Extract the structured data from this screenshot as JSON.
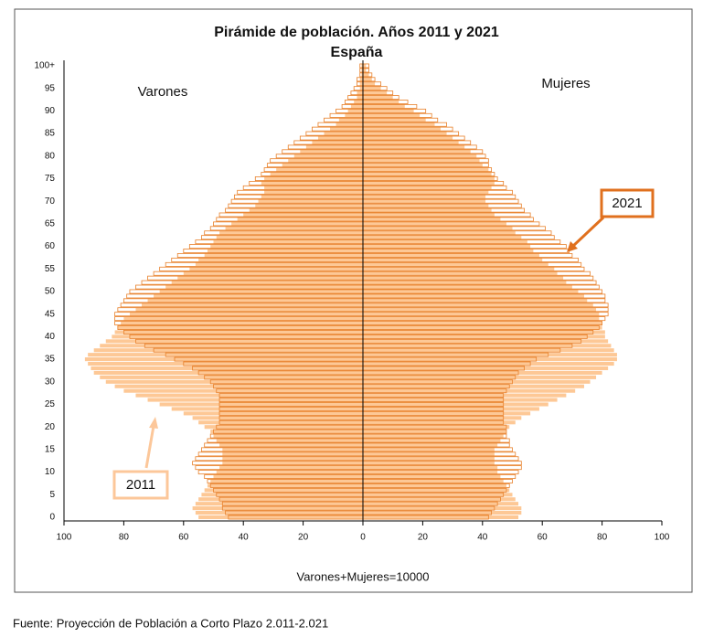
{
  "chart_data": {
    "type": "pyramid",
    "title": "Pirámide de población. Años 2011 y 2021",
    "subtitle": "España",
    "xlabel": "Varones+Mujeres=10000",
    "source": "Fuente: Proyección de Población a Corto Plazo 2.011-2.021",
    "xlim": [
      0,
      100
    ],
    "xticks": [
      0,
      20,
      40,
      60,
      80,
      100
    ],
    "categories": [
      "0",
      null,
      null,
      null,
      null,
      "5",
      null,
      null,
      null,
      null,
      "10",
      null,
      null,
      null,
      null,
      "15",
      null,
      null,
      null,
      null,
      "20",
      null,
      null,
      null,
      null,
      "25",
      null,
      null,
      null,
      null,
      "30",
      null,
      null,
      null,
      null,
      "35",
      null,
      null,
      null,
      null,
      "40",
      null,
      null,
      null,
      null,
      "45",
      null,
      null,
      null,
      null,
      "50",
      null,
      null,
      null,
      null,
      "55",
      null,
      null,
      null,
      null,
      "60",
      null,
      null,
      null,
      null,
      "65",
      null,
      null,
      null,
      null,
      "70",
      null,
      null,
      null,
      null,
      "75",
      null,
      null,
      null,
      null,
      "80",
      null,
      null,
      null,
      null,
      "85",
      null,
      null,
      null,
      null,
      "90",
      null,
      null,
      null,
      null,
      "95",
      null,
      null,
      null,
      null,
      "100+"
    ],
    "groups": [
      {
        "name": "Varones",
        "series": [
          {
            "name": "2011",
            "color": "#fdc896",
            "filled": true,
            "values": [
              55,
              56,
              57,
              56,
              55,
              54,
              53,
              52,
              51,
              50,
              49,
              48,
              47,
              47,
              47,
              47,
              48,
              49,
              50,
              51,
              53,
              55,
              57,
              60,
              64,
              68,
              72,
              76,
              80,
              83,
              86,
              88,
              90,
              91,
              92,
              93,
              92,
              90,
              88,
              86,
              84,
              83,
              82,
              81,
              80,
              78,
              76,
              74,
              72,
              70,
              68,
              66,
              64,
              62,
              60,
              58,
              56,
              55,
              53,
              52,
              51,
              50,
              49,
              48,
              46,
              44,
              42,
              40,
              38,
              36,
              35,
              34,
              33,
              33,
              34,
              33,
              31,
              29,
              27,
              25,
              23,
              21,
              19,
              17,
              15,
              13,
              11,
              9,
              8,
              6,
              5,
              4,
              3,
              2,
              2,
              1,
              1,
              1,
              0.5,
              0.5,
              0.5
            ]
          },
          {
            "name": "2021",
            "color": "#e8802a",
            "filled": false,
            "values": [
              45,
              46,
              47,
              47,
              48,
              49,
              50,
              51,
              52,
              53,
              55,
              56,
              57,
              56,
              55,
              54,
              53,
              52,
              51,
              50,
              49,
              48,
              48,
              48,
              48,
              48,
              48,
              48,
              49,
              50,
              51,
              53,
              55,
              57,
              60,
              63,
              66,
              70,
              73,
              76,
              78,
              80,
              82,
              83,
              83,
              83,
              82,
              81,
              80,
              79,
              78,
              76,
              74,
              72,
              70,
              68,
              66,
              64,
              62,
              60,
              58,
              56,
              54,
              53,
              51,
              50,
              49,
              48,
              46,
              45,
              44,
              43,
              42,
              40,
              38,
              36,
              34,
              33,
              32,
              31,
              29,
              27,
              25,
              23,
              21,
              19,
              17,
              15,
              13,
              11,
              9,
              7,
              6,
              5,
              4,
              3,
              2,
              2,
              1,
              1,
              1
            ]
          }
        ]
      },
      {
        "name": "Mujeres",
        "series": [
          {
            "name": "2011",
            "color": "#fdc896",
            "filled": true,
            "values": [
              52,
              53,
              53,
              52,
              51,
              50,
              49,
              48,
              47,
              46,
              45,
              45,
              44,
              44,
              44,
              44,
              45,
              46,
              47,
              48,
              49,
              51,
              53,
              56,
              59,
              62,
              65,
              68,
              71,
              74,
              76,
              78,
              80,
              82,
              84,
              85,
              85,
              84,
              83,
              82,
              81,
              81,
              80,
              80,
              79,
              79,
              78,
              77,
              75,
              74,
              72,
              70,
              68,
              67,
              65,
              64,
              62,
              60,
              59,
              57,
              56,
              55,
              53,
              51,
              50,
              48,
              46,
              44,
              43,
              42,
              41,
              41,
              42,
              43,
              44,
              44,
              43,
              42,
              40,
              39,
              38,
              36,
              34,
              32,
              30,
              28,
              26,
              24,
              21,
              19,
              17,
              14,
              12,
              10,
              8,
              6,
              4,
              3,
              2,
              1,
              1
            ]
          },
          {
            "name": "2021",
            "color": "#e8802a",
            "filled": false,
            "values": [
              42,
              43,
              44,
              45,
              46,
              47,
              48,
              49,
              50,
              51,
              52,
              53,
              53,
              52,
              51,
              50,
              49,
              49,
              48,
              48,
              48,
              47,
              47,
              47,
              47,
              47,
              47,
              47,
              48,
              49,
              50,
              51,
              52,
              54,
              56,
              58,
              62,
              66,
              70,
              73,
              75,
              77,
              79,
              80,
              81,
              82,
              82,
              82,
              81,
              81,
              80,
              79,
              78,
              77,
              76,
              74,
              73,
              72,
              70,
              69,
              68,
              66,
              64,
              63,
              61,
              59,
              57,
              56,
              54,
              53,
              52,
              51,
              50,
              48,
              47,
              45,
              44,
              43,
              42,
              42,
              41,
              40,
              38,
              36,
              34,
              32,
              30,
              28,
              25,
              23,
              21,
              18,
              15,
              12,
              10,
              8,
              6,
              4,
              3,
              2,
              2
            ]
          }
        ]
      }
    ]
  }
}
